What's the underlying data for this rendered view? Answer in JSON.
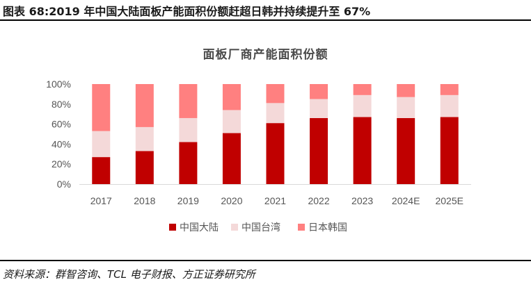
{
  "figure": {
    "title": "图表 68:2019 年中国大陆面板产能面积份额赶超日韩并持续提升至 67%",
    "source": "资料来源：群智咨询、TCL 电子财报、方正证券研究所"
  },
  "colors": {
    "mainland": "#c00000",
    "taiwan": "#f4d9d9",
    "japan_korea": "#ff8080",
    "axis": "#d9d9d9"
  },
  "chart_data": {
    "type": "bar",
    "stacked": true,
    "percent": true,
    "title": "面板厂商产能面积份额",
    "categories": [
      "2017",
      "2018",
      "2019",
      "2020",
      "2021",
      "2022",
      "2023",
      "2024E",
      "2025E"
    ],
    "series": [
      {
        "name": "中国大陆",
        "values": [
          27,
          33,
          42,
          51,
          61,
          66,
          67,
          66,
          67
        ]
      },
      {
        "name": "中国台湾",
        "values": [
          26,
          24,
          24,
          23,
          20,
          19,
          22,
          21,
          22
        ]
      },
      {
        "name": "日本韩国",
        "values": [
          47,
          43,
          34,
          26,
          19,
          15,
          11,
          13,
          11
        ]
      }
    ],
    "yticks": [
      "0%",
      "20%",
      "40%",
      "60%",
      "80%",
      "100%"
    ],
    "ylim": [
      0,
      100
    ],
    "grid": false,
    "legend_position": "bottom"
  }
}
